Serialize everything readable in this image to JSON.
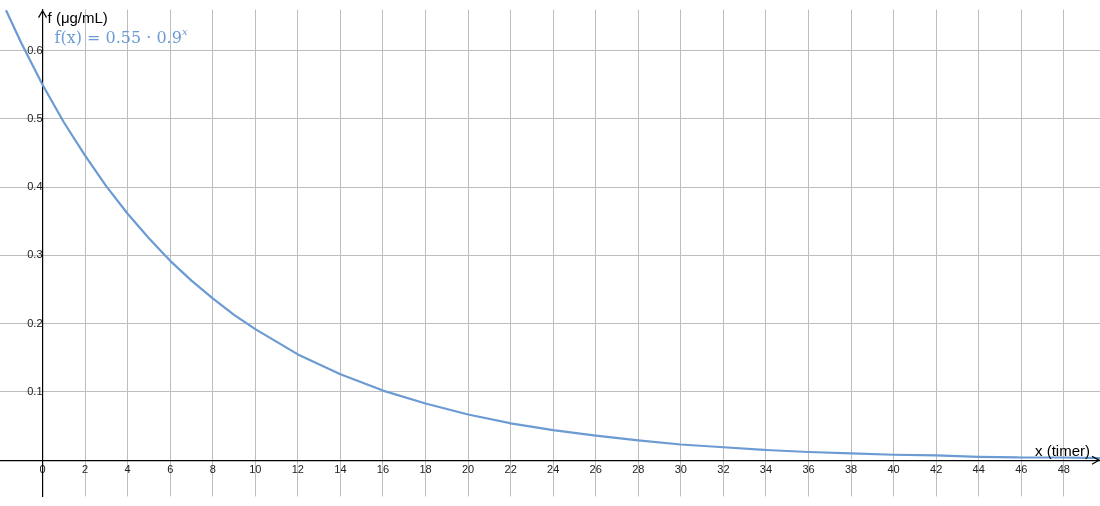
{
  "chart_data": {
    "type": "line",
    "xlabel": "x (timer)",
    "ylabel": "f (μg/mL)",
    "annotations": [
      "f(x) = 0.55 · 0.9$^{x}$"
    ],
    "x": [
      -1.7,
      -1,
      0,
      1,
      2,
      3,
      4,
      5,
      6,
      7,
      8,
      9,
      10,
      12,
      14,
      16,
      18,
      20,
      22,
      24,
      26,
      28,
      30,
      32,
      34,
      36,
      38,
      40,
      42,
      44,
      46,
      48,
      49.7
    ],
    "series": [
      {
        "color": "#6b9bd2",
        "values": [
          0.658,
          0.611,
          0.55,
          0.495,
          0.446,
          0.401,
          0.361,
          0.325,
          0.292,
          0.263,
          0.237,
          0.213,
          0.192,
          0.155,
          0.126,
          0.102,
          0.083,
          0.067,
          0.054,
          0.044,
          0.036,
          0.029,
          0.023,
          0.019,
          0.015,
          0.012,
          0.01,
          0.008,
          0.007,
          0.005,
          0.004,
          0.004,
          0.003
        ]
      }
    ],
    "xlim": [
      -2,
      49.7
    ],
    "ylim": [
      -0.053,
      0.66
    ],
    "xticks": [
      0,
      2,
      4,
      6,
      8,
      10,
      12,
      14,
      16,
      18,
      20,
      22,
      24,
      26,
      28,
      30,
      32,
      34,
      36,
      38,
      40,
      42,
      44,
      46,
      48
    ],
    "yticks": [
      0.1,
      0.2,
      0.3,
      0.4,
      0.5,
      0.6
    ],
    "grid": true,
    "marker": "none",
    "line_style": "solid",
    "legend": false
  }
}
